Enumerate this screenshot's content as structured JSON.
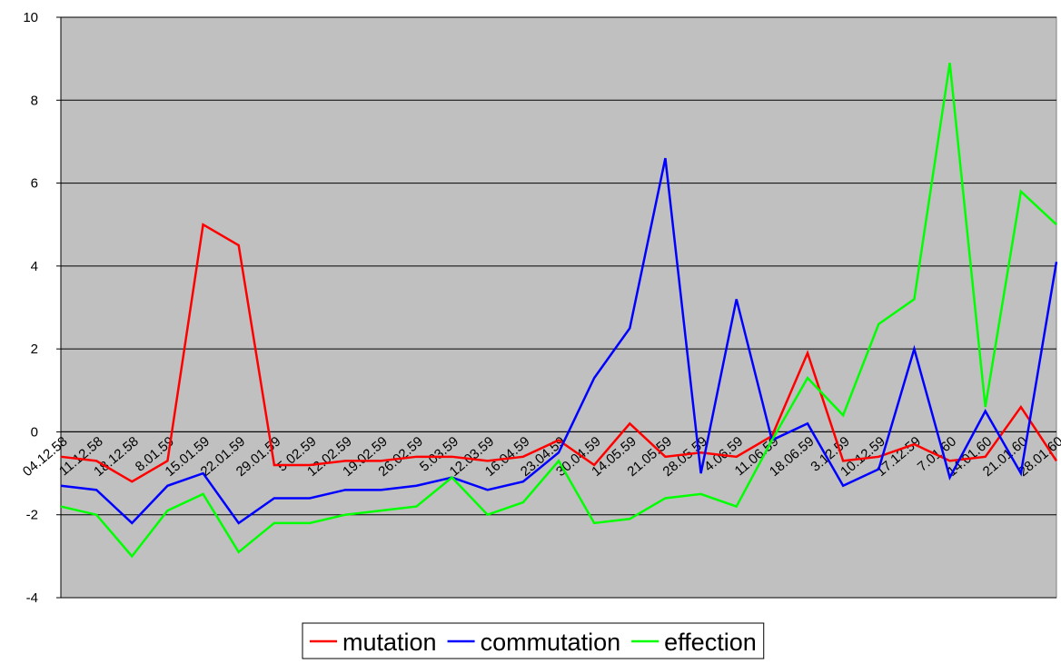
{
  "chart_data": {
    "type": "line",
    "categories": [
      "04.12.58",
      "11.12.58",
      "18.12.58",
      "8.01.59",
      "15.01.59",
      "22.01.59",
      "29.01.59",
      "5.02.59",
      "12.02.59",
      "19.02.59",
      "26.02.59",
      "5.03.59",
      "12.03.59",
      "16.04.59",
      "23.04.59",
      "30.04.59",
      "14.05.59",
      "21.05.59",
      "28.05.59",
      "4.06.59",
      "11.06.59",
      "18.06.59",
      "3.12.59",
      "10.12.59",
      "17.12.59",
      "7.01.60",
      "14.01.60",
      "21.01.60",
      "28.01.60"
    ],
    "series": [
      {
        "name": "mutation",
        "color": "#ff0000",
        "values": [
          -0.6,
          -0.7,
          -1.2,
          -0.7,
          5.0,
          4.5,
          -0.8,
          -0.8,
          -0.7,
          -0.7,
          -0.6,
          -0.6,
          -0.7,
          -0.6,
          -0.2,
          -0.8,
          0.2,
          -0.6,
          -0.5,
          -0.6,
          -0.1,
          1.9,
          -0.7,
          -0.6,
          -0.3,
          -0.7,
          -0.6,
          0.6,
          -0.7
        ]
      },
      {
        "name": "commutation",
        "color": "#0000ff",
        "values": [
          -1.3,
          -1.4,
          -2.2,
          -1.3,
          -1.0,
          -2.2,
          -1.6,
          -1.6,
          -1.4,
          -1.4,
          -1.3,
          -1.1,
          -1.4,
          -1.2,
          -0.5,
          1.3,
          2.5,
          6.6,
          -1.0,
          3.2,
          -0.2,
          0.2,
          -1.3,
          -0.9,
          2.0,
          -1.1,
          0.5,
          -1.0,
          4.1
        ]
      },
      {
        "name": "effection",
        "color": "#00ff00",
        "values": [
          -1.8,
          -2.0,
          -3.0,
          -1.9,
          -1.5,
          -2.9,
          -2.2,
          -2.2,
          -2.0,
          -1.9,
          -1.8,
          -1.1,
          -2.0,
          -1.7,
          -0.7,
          -2.2,
          -2.1,
          -1.6,
          -1.5,
          -1.8,
          -0.2,
          1.3,
          0.4,
          2.6,
          3.2,
          8.9,
          0.6,
          5.8,
          5.0
        ]
      }
    ],
    "ylim": [
      -4,
      10
    ],
    "yticks": [
      -4,
      -2,
      0,
      2,
      4,
      6,
      8,
      10
    ],
    "grid": true,
    "legend": "bottom"
  }
}
